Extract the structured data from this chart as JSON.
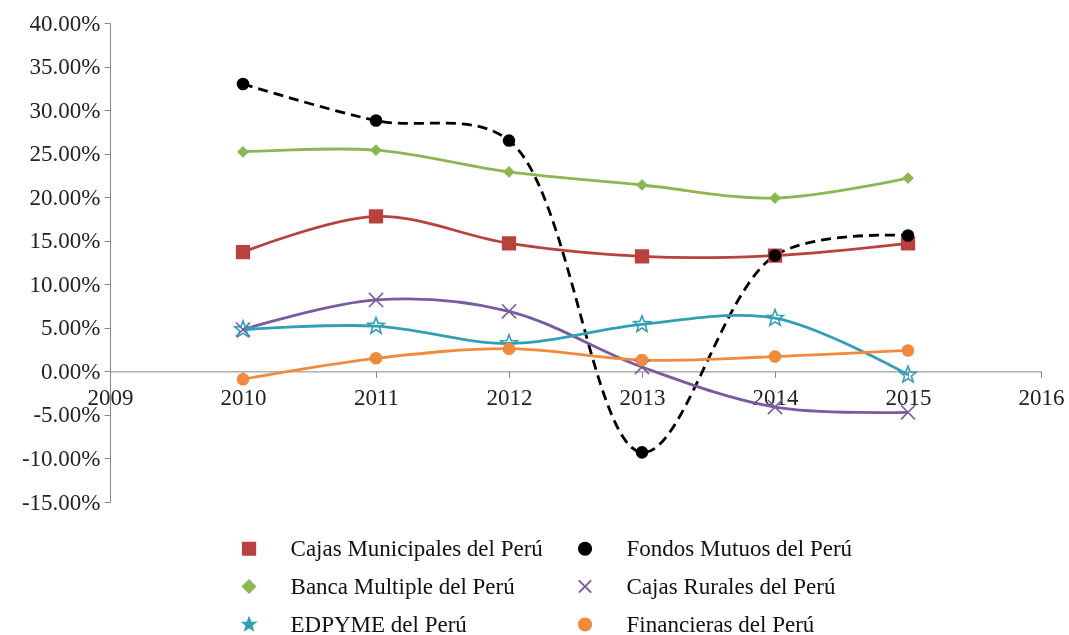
{
  "chart_data": {
    "type": "line",
    "x": [
      2010,
      2011,
      2012,
      2013,
      2014,
      2015
    ],
    "xlim": [
      2009,
      2016
    ],
    "xticks": [
      2009,
      2010,
      2011,
      2012,
      2013,
      2014,
      2015,
      2016
    ],
    "ylim": [
      -15,
      40
    ],
    "yticks": [
      {
        "value": 40,
        "label": "40.00%"
      },
      {
        "value": 35,
        "label": "35.00%"
      },
      {
        "value": 30,
        "label": "30.00%"
      },
      {
        "value": 25,
        "label": "25.00%"
      },
      {
        "value": 20,
        "label": "20.00%"
      },
      {
        "value": 15,
        "label": "15.00%"
      },
      {
        "value": 10,
        "label": "10.00%"
      },
      {
        "value": 5,
        "label": "5.00%"
      },
      {
        "value": 0,
        "label": "0.00%"
      },
      {
        "value": -5,
        "label": "-5.00%"
      },
      {
        "value": -10,
        "label": "-10.00%"
      },
      {
        "value": -15,
        "label": "-15.00%"
      }
    ],
    "grid": false,
    "legend": "bottom",
    "line_style": "solid",
    "series": [
      {
        "name": "Cajas Municipales del Perú",
        "color": "#b9423f",
        "marker": "square",
        "values": [
          13.7,
          17.8,
          14.7,
          13.2,
          13.3,
          14.7
        ]
      },
      {
        "name": "Fondos Mutuos del Perú",
        "color": "#000000",
        "marker": "circle",
        "line_style": "dashed",
        "values": [
          33.0,
          28.8,
          26.5,
          -9.3,
          13.3,
          15.6
        ]
      },
      {
        "name": "Banca Multiple del Perú",
        "color": "#8db653",
        "marker": "diamond",
        "values": [
          25.2,
          25.4,
          22.9,
          21.4,
          19.9,
          22.2
        ]
      },
      {
        "name": "Cajas Rurales del Perú",
        "color": "#7a5aa0",
        "marker": "cross",
        "values": [
          4.8,
          8.2,
          6.9,
          0.5,
          -4.1,
          -4.7
        ]
      },
      {
        "name": "EDPYME del Perú",
        "color": "#339fb6",
        "marker": "star",
        "values": [
          4.8,
          5.2,
          3.2,
          5.4,
          6.1,
          -0.4
        ]
      },
      {
        "name": "Financieras del Perú",
        "color": "#f08a3c",
        "marker": "circle",
        "values": [
          -0.9,
          1.5,
          2.6,
          1.3,
          1.7,
          2.4
        ]
      }
    ]
  }
}
